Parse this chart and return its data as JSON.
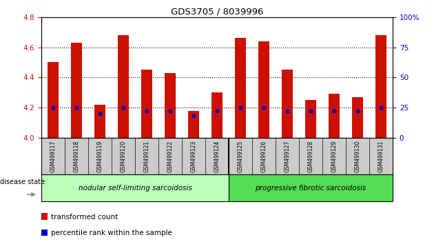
{
  "title": "GDS3705 / 8039996",
  "samples": [
    "GSM499117",
    "GSM499118",
    "GSM499119",
    "GSM499120",
    "GSM499121",
    "GSM499122",
    "GSM499123",
    "GSM499124",
    "GSM499125",
    "GSM499126",
    "GSM499127",
    "GSM499128",
    "GSM499129",
    "GSM499130",
    "GSM499131"
  ],
  "transformed_count": [
    4.5,
    4.63,
    4.22,
    4.68,
    4.45,
    4.43,
    4.18,
    4.3,
    4.66,
    4.64,
    4.45,
    4.25,
    4.29,
    4.27,
    4.68
  ],
  "percentile_rank": [
    25,
    25,
    20,
    25,
    22,
    22,
    18,
    22,
    25,
    25,
    22,
    22,
    22,
    22,
    25
  ],
  "ylim_left": [
    4.0,
    4.8
  ],
  "ylim_right": [
    0,
    100
  ],
  "yticks_left": [
    4.0,
    4.2,
    4.4,
    4.6,
    4.8
  ],
  "yticks_right": [
    0,
    25,
    50,
    75,
    100
  ],
  "ytick_labels_right": [
    "0",
    "25",
    "50",
    "75",
    "100%"
  ],
  "bar_color": "#cc1100",
  "marker_color": "#0000cc",
  "bar_width": 0.45,
  "group1_label": "nodular self-limiting sarcoidosis",
  "group2_label": "progressive fibrotic sarcoidosis",
  "group1_count": 8,
  "group2_count": 7,
  "disease_state_label": "disease state",
  "legend_transformed": "transformed count",
  "legend_percentile": "percentile rank within the sample",
  "group1_color": "#bbffbb",
  "group2_color": "#55dd55",
  "label_area_color": "#cccccc",
  "bg_color": "#ffffff",
  "grid_yticks": [
    4.2,
    4.4,
    4.6
  ]
}
